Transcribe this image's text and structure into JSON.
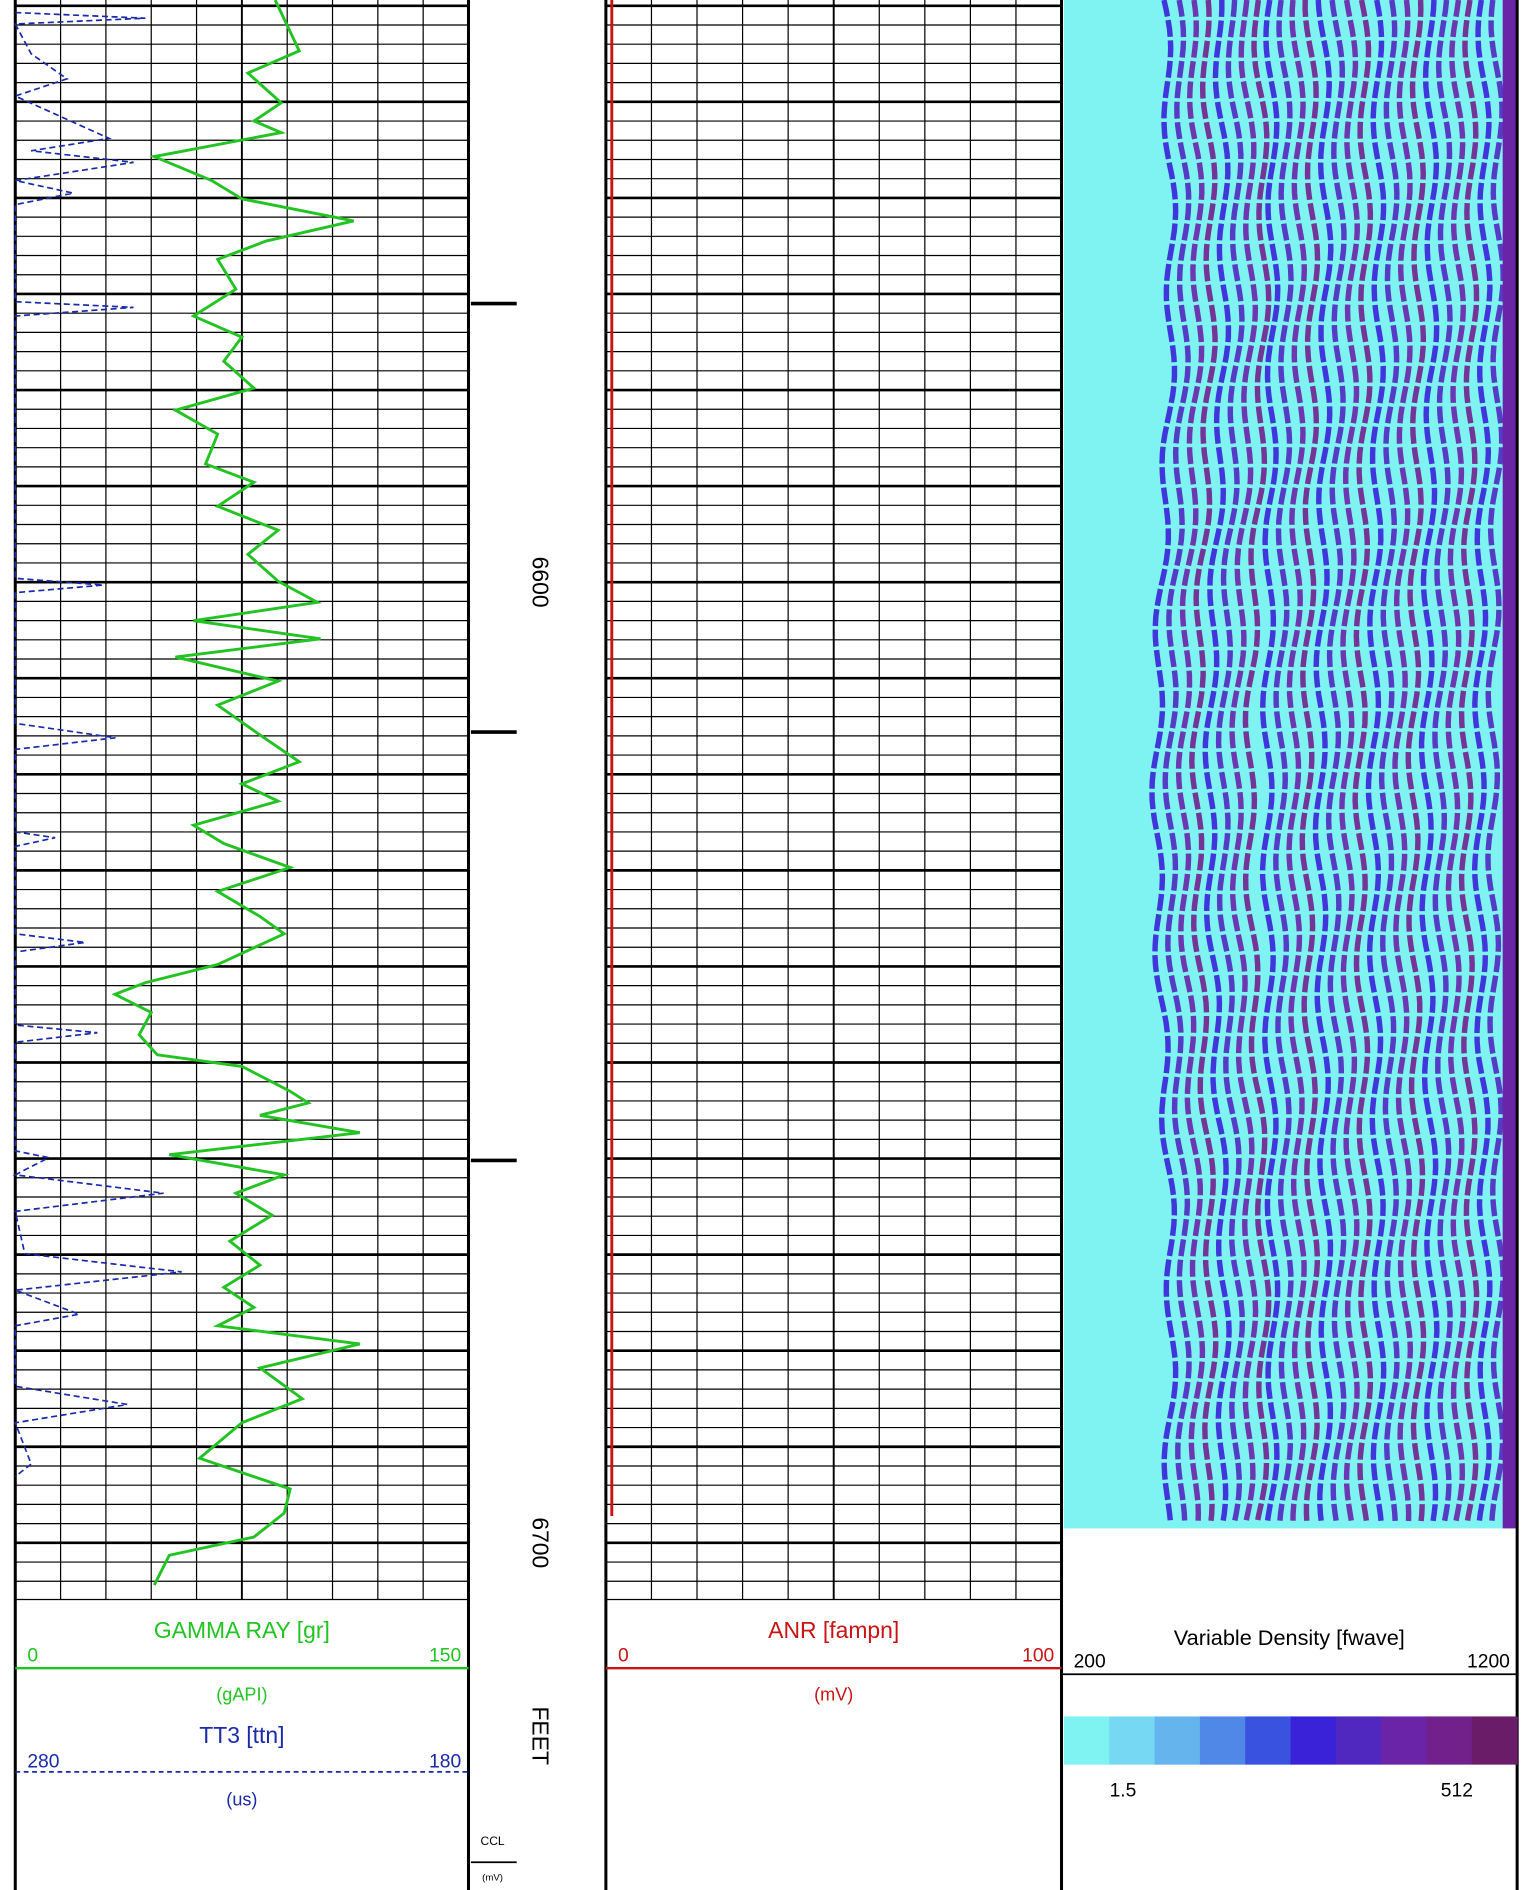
{
  "chart_data": {
    "type": "well-log",
    "depth_unit": "FEET",
    "depth_lim": [
      6539.4,
      6705.9
    ],
    "depth_ticks": [
      6600,
      6700
    ],
    "grid_depths": [
      6540,
      6542,
      6544,
      6546,
      6548,
      6550,
      6552,
      6554,
      6556,
      6558,
      6560,
      6562,
      6564,
      6566,
      6568,
      6570,
      6572,
      6574,
      6576,
      6578,
      6580,
      6582,
      6584,
      6586,
      6588,
      6590,
      6592,
      6594,
      6596,
      6598,
      6600,
      6602,
      6604,
      6606,
      6608,
      6610,
      6612,
      6614,
      6616,
      6618,
      6620,
      6622,
      6624,
      6626,
      6628,
      6630,
      6632,
      6634,
      6636,
      6638,
      6640,
      6642,
      6644,
      6646,
      6648,
      6650,
      6652,
      6654,
      6656,
      6658,
      6660,
      6662,
      6664,
      6666,
      6668,
      6670,
      6672,
      6674,
      6676,
      6678,
      6680,
      6682,
      6684,
      6686,
      6688,
      6690,
      6692,
      6694,
      6696,
      6698,
      6700,
      6702,
      6704
    ],
    "tracks": [
      {
        "curves": [
          {
            "name": "GAMMA RAY [gr]",
            "unit": "(gAPI)",
            "color": "#22c322",
            "style": "solid",
            "lim": [
              0,
              150
            ],
            "depth": [
              6539.4,
              6544.7,
              6547.0,
              6550.1,
              6552.0,
              6553.2,
              6555.7,
              6558.2,
              6560.1,
              6562.4,
              6564.5,
              6566.4,
              6569.5,
              6572.3,
              6574.5,
              6577.0,
              6579.8,
              6582.1,
              6584.6,
              6587.7,
              6589.6,
              6592.1,
              6594.6,
              6597.1,
              6599.9,
              6602.1,
              6604.0,
              6605.9,
              6607.8,
              6610.3,
              6612.8,
              6615.9,
              6618.7,
              6621.0,
              6622.8,
              6625.3,
              6627.2,
              6629.7,
              6632.2,
              6634.8,
              6636.6,
              6639.8,
              6641.7,
              6642.9,
              6644.8,
              6647.1,
              6649.2,
              6650.4,
              6653.0,
              6654.2,
              6655.5,
              6657.3,
              6659.6,
              6661.7,
              6663.6,
              6665.9,
              6668.6,
              6671.1,
              6673.4,
              6675.5,
              6677.4,
              6679.3,
              6681.8,
              6685.0,
              6687.5,
              6691.2,
              6694.4,
              6696.9,
              6699.4,
              6701.3,
              6704.4
            ],
            "values": [
              86,
              94,
              77,
              88,
              79,
              88,
              46,
              65,
              75,
              112,
              83,
              67,
              73,
              59,
              75,
              69,
              79,
              53,
              67,
              63,
              79,
              67,
              87,
              77,
              87,
              100,
              59,
              101,
              53,
              87,
              67,
              81,
              94,
              75,
              87,
              59,
              69,
              91,
              67,
              81,
              89,
              67,
              43,
              33,
              45,
              41,
              47,
              75,
              91,
              97,
              81,
              114,
              51,
              89,
              73,
              85,
              71,
              81,
              69,
              79,
              67,
              114,
              81,
              95,
              75,
              61,
              91,
              89,
              79,
              51,
              46
            ]
          },
          {
            "name": "TT3 [ttn]",
            "unit": "(us)",
            "color": "#1a2aa8",
            "style": "dashed",
            "lim": [
              280,
              180
            ],
            "depth": [
              6540.7,
              6541.3,
              6541.9,
              6545.0,
              6547.6,
              6549.4,
              6553.8,
              6555.1,
              6556.3,
              6558.2,
              6559.5,
              6560.7,
              6570.8,
              6571.4,
              6572.3,
              6599.6,
              6600.3,
              6601.1,
              6614.7,
              6616.2,
              6617.4,
              6626.0,
              6626.6,
              6627.5,
              6636.6,
              6637.5,
              6638.5,
              6646.1,
              6646.9,
              6647.9,
              6659.2,
              6659.9,
              6661.7,
              6663.6,
              6665.5,
              6669.9,
              6671.8,
              6673.7,
              6676.2,
              6677.4,
              6683.7,
              6685.6,
              6687.5,
              6691.8,
              6693.1
            ],
            "values": [
              280,
              251.3,
              280,
              276.5,
              268.6,
              280,
              259.3,
              276.5,
              253.9,
              280,
              267.2,
              280,
              280,
              253.9,
              280,
              280,
              260.6,
              280,
              280,
              257.9,
              280,
              280,
              271.2,
              280,
              280,
              264.6,
              280,
              280,
              261.9,
              280,
              280,
              272.6,
              280,
              247.3,
              280,
              277.9,
              243.3,
              280,
              265.9,
              280,
              280,
              255.3,
              280,
              276.5,
              280
            ]
          }
        ]
      },
      {
        "curves": [
          {
            "name": "ANR [fampn]",
            "unit": "(mV)",
            "color": "#c81414",
            "style": "solid",
            "lim": [
              0,
              100
            ],
            "depth": [
              6539.4,
              6697.2
            ],
            "values": [
              1.3,
              1.3
            ]
          }
        ]
      },
      {
        "image": {
          "name": "Variable Density [fwave]",
          "lim": [
            200,
            1200
          ],
          "colormap": [
            "#7ff2f2",
            "#77d8f4",
            "#66b4ee",
            "#5088e8",
            "#3a52e0",
            "#3a22d8",
            "#5028c0",
            "#6a24a8",
            "#72208c",
            "#6a1c68"
          ],
          "color_ticks": [
            1.5,
            512
          ]
        }
      }
    ],
    "ccl": {
      "name": "CCL",
      "unit": "(mV)",
      "collars": [
        6571.0,
        6615.6,
        6660.2
      ]
    }
  }
}
